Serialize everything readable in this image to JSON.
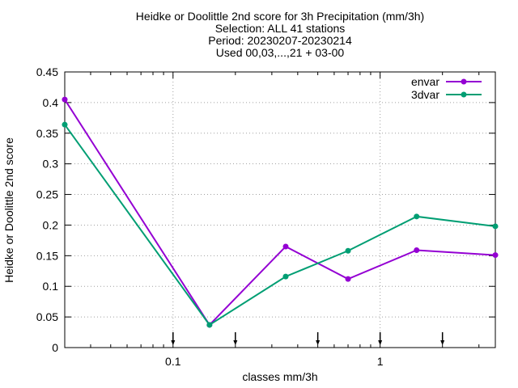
{
  "chart_data": {
    "type": "line",
    "title_lines": [
      "Heidke or Doolittle 2nd score  for 3h Precipitation (mm/3h)",
      "Selection: ALL     41 stations",
      "Period: 20230207-20230214",
      "Used 00,03,...,21 + 03-00"
    ],
    "xlabel": "classes mm/3h",
    "ylabel": "Heidke or Doolittle 2nd score",
    "x_scale": "log",
    "xlim": [
      0.03,
      3.6
    ],
    "ylim": [
      0,
      0.45
    ],
    "x_ticks": [
      {
        "value": 0.1,
        "label": "0.1"
      },
      {
        "value": 1,
        "label": "1"
      }
    ],
    "y_ticks": [
      {
        "value": 0,
        "label": "0"
      },
      {
        "value": 0.05,
        "label": "0.05"
      },
      {
        "value": 0.1,
        "label": "0.1"
      },
      {
        "value": 0.15,
        "label": "0.15"
      },
      {
        "value": 0.2,
        "label": "0.2"
      },
      {
        "value": 0.25,
        "label": "0.25"
      },
      {
        "value": 0.3,
        "label": "0.3"
      },
      {
        "value": 0.35,
        "label": "0.35"
      },
      {
        "value": 0.4,
        "label": "0.4"
      },
      {
        "value": 0.45,
        "label": "0.45"
      }
    ],
    "grid": true,
    "legend_position": "top-right",
    "class_markers_x": [
      0.1,
      0.2,
      0.5,
      1,
      2
    ],
    "series": [
      {
        "name": "envar",
        "color": "#9400d3",
        "x": [
          0.03,
          0.15,
          0.35,
          0.7,
          1.5,
          3.6
        ],
        "y": [
          0.405,
          0.037,
          0.165,
          0.112,
          0.159,
          0.151
        ]
      },
      {
        "name": "3dvar",
        "color": "#009e73",
        "x": [
          0.03,
          0.15,
          0.35,
          0.7,
          1.5,
          3.6
        ],
        "y": [
          0.364,
          0.037,
          0.116,
          0.158,
          0.214,
          0.198
        ]
      }
    ]
  }
}
